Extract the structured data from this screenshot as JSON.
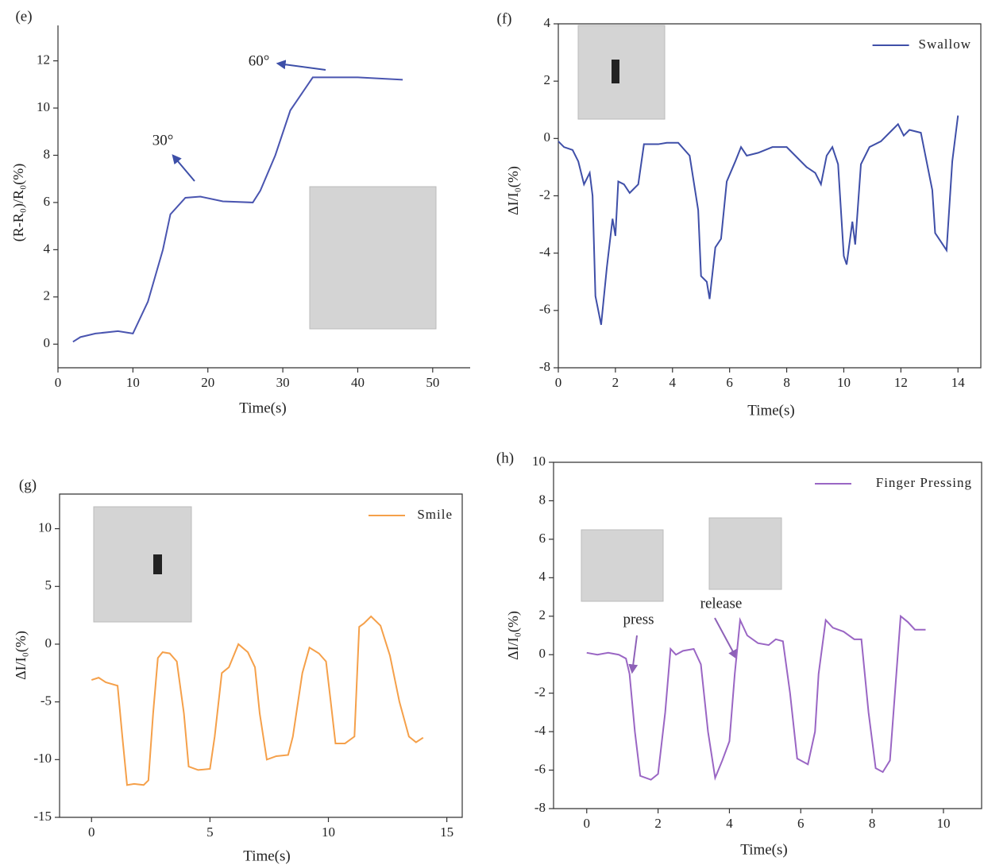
{
  "chart_data": [
    {
      "type": "line",
      "label": "(e)",
      "x_label": "Time(s)",
      "y_label": "(R-R₀)/R₀(%)",
      "color": "#4a55b0",
      "x": [
        2,
        3,
        5,
        8,
        10,
        12,
        14,
        15,
        17,
        19,
        22,
        26,
        27,
        29,
        31,
        34,
        40,
        46
      ],
      "values": [
        0.1,
        0.3,
        0.45,
        0.55,
        0.45,
        1.8,
        4,
        5.5,
        6.2,
        6.25,
        6.05,
        6.0,
        6.5,
        8,
        9.9,
        11.3,
        11.3,
        11.2
      ],
      "xlim": [
        0,
        55
      ],
      "ylim": [
        -1,
        13.5
      ],
      "xticks": [
        0,
        10,
        20,
        30,
        40,
        50
      ],
      "yticks": [
        0,
        2,
        4,
        6,
        8,
        10,
        12
      ],
      "annotations": [
        "30°",
        "60°"
      ]
    },
    {
      "type": "line",
      "label": "(f)",
      "x_label": "Time(s)",
      "y_label": "ΔI/I₀(%)",
      "legend": "upper right",
      "x": [
        0,
        0.2,
        0.5,
        0.7,
        0.9,
        1.1,
        1.2,
        1.3,
        1.5,
        1.7,
        1.9,
        2.0,
        2.1,
        2.3,
        2.5,
        2.8,
        3.0,
        3.5,
        3.8,
        4.2,
        4.6,
        4.9,
        5.0,
        5.2,
        5.3,
        5.5,
        5.7,
        5.9,
        6.2,
        6.4,
        6.6,
        7,
        7.5,
        8,
        8.3,
        8.7,
        9,
        9.2,
        9.4,
        9.6,
        9.8,
        10.0,
        10.1,
        10.3,
        10.4,
        10.6,
        10.9,
        11.3,
        11.7,
        11.9,
        12.1,
        12.3,
        12.7,
        12.9,
        13.1,
        13.2,
        13.4,
        13.6,
        13.8,
        14.0
      ],
      "series": [
        {
          "name": "Swallow",
          "color": "#3f4fa8",
          "values": [
            -0.1,
            -0.3,
            -0.4,
            -0.8,
            -1.6,
            -1.2,
            -2,
            -5.5,
            -6.5,
            -4.5,
            -2.8,
            -3.4,
            -1.5,
            -1.6,
            -1.9,
            -1.6,
            -0.2,
            -0.2,
            -0.15,
            -0.15,
            -0.6,
            -2.5,
            -4.8,
            -5.0,
            -5.6,
            -3.8,
            -3.5,
            -1.5,
            -0.8,
            -0.3,
            -0.6,
            -0.5,
            -0.3,
            -0.3,
            -0.6,
            -1.0,
            -1.2,
            -1.6,
            -0.6,
            -0.3,
            -0.9,
            -4.1,
            -4.4,
            -2.9,
            -3.7,
            -0.9,
            -0.3,
            -0.1,
            0.3,
            0.5,
            0.1,
            0.3,
            0.2,
            -0.8,
            -1.8,
            -3.3,
            -3.6,
            -3.9,
            -0.8,
            0.8
          ]
        }
      ],
      "xlim": [
        0,
        14.8
      ],
      "ylim": [
        -8,
        4
      ],
      "xticks": [
        0,
        2,
        4,
        6,
        8,
        10,
        12,
        14
      ],
      "yticks": [
        -8,
        -6,
        -4,
        -2,
        0,
        2,
        4
      ]
    },
    {
      "type": "line",
      "label": "(g)",
      "x_label": "Time(s)",
      "y_label": "ΔI/I₀(%)",
      "legend": "upper right",
      "x": [
        0,
        0.3,
        0.6,
        1.1,
        1.3,
        1.5,
        1.8,
        2.2,
        2.4,
        2.6,
        2.8,
        3.0,
        3.3,
        3.6,
        3.9,
        4.1,
        4.5,
        5.0,
        5.2,
        5.5,
        5.8,
        6.0,
        6.2,
        6.6,
        6.9,
        7.1,
        7.4,
        7.8,
        8.3,
        8.5,
        8.9,
        9.2,
        9.6,
        9.9,
        10.1,
        10.3,
        10.7,
        11.1,
        11.3,
        11.5,
        11.8,
        12.2,
        12.6,
        13.0,
        13.4,
        13.7,
        14.0
      ],
      "series": [
        {
          "name": "Smile",
          "color": "#f5a04a",
          "values": [
            -3.1,
            -2.9,
            -3.3,
            -3.6,
            -8,
            -12.2,
            -12.1,
            -12.2,
            -11.8,
            -6,
            -1.2,
            -0.7,
            -0.8,
            -1.5,
            -6,
            -10.6,
            -10.9,
            -10.8,
            -8,
            -2.5,
            -2,
            -1.0,
            0,
            -0.7,
            -2,
            -6,
            -10,
            -9.7,
            -9.6,
            -8,
            -2.5,
            -0.3,
            -0.8,
            -1.5,
            -5,
            -8.6,
            -8.6,
            -8,
            1.5,
            1.8,
            2.4,
            1.6,
            -1,
            -5,
            -8,
            -8.5,
            -8.1
          ]
        }
      ],
      "xlim": [
        -1.35,
        15.65
      ],
      "ylim": [
        -15,
        13
      ],
      "xticks": [
        0,
        5,
        10,
        15
      ],
      "yticks": [
        -15,
        -10,
        -5,
        0,
        5,
        10
      ]
    },
    {
      "type": "line",
      "label": "(h)",
      "x_label": "Time(s)",
      "y_label": "ΔI/I₀(%)",
      "legend": "upper right",
      "x": [
        0,
        0.3,
        0.6,
        0.9,
        1.1,
        1.2,
        1.35,
        1.5,
        1.8,
        2.0,
        2.2,
        2.35,
        2.5,
        2.7,
        3.0,
        3.2,
        3.4,
        3.6,
        3.8,
        4.0,
        4.15,
        4.3,
        4.5,
        4.8,
        5.1,
        5.3,
        5.5,
        5.7,
        5.9,
        6.2,
        6.4,
        6.5,
        6.7,
        6.9,
        7.2,
        7.5,
        7.7,
        7.9,
        8.1,
        8.3,
        8.5,
        8.6,
        8.8,
        9.0,
        9.2,
        9.5
      ],
      "series": [
        {
          "name": "Finger Pressing",
          "color": "#9a66c4",
          "values": [
            0.1,
            0,
            0.1,
            0,
            -0.2,
            -1,
            -4,
            -6.3,
            -6.5,
            -6.2,
            -3,
            0.3,
            0,
            0.2,
            0.3,
            -0.5,
            -4,
            -6.4,
            -5.5,
            -4.5,
            -1,
            1.8,
            1,
            0.6,
            0.5,
            0.8,
            0.7,
            -2,
            -5.4,
            -5.7,
            -4,
            -1,
            1.8,
            1.4,
            1.2,
            0.8,
            0.8,
            -3,
            -5.9,
            -6.1,
            -5.5,
            -3,
            2,
            1.7,
            1.3,
            1.3
          ]
        }
      ],
      "xlim": [
        -0.93,
        11.07
      ],
      "ylim": [
        -8,
        10
      ],
      "xticks": [
        0,
        2,
        4,
        6,
        8,
        10
      ],
      "yticks": [
        -8,
        -6,
        -4,
        -2,
        0,
        2,
        4,
        6,
        8,
        10
      ],
      "annotations": [
        "press",
        "release"
      ]
    }
  ]
}
